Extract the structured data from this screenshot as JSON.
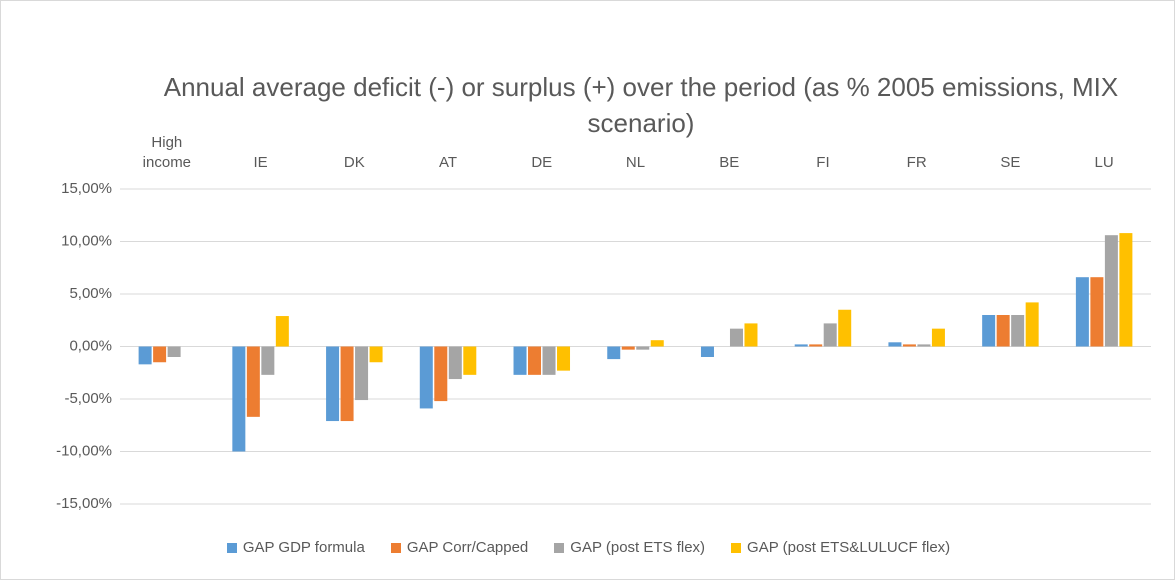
{
  "chart_data": {
    "type": "bar",
    "title": "Annual average deficit (-) or surplus (+) over the period (as % 2005 emissions, MIX scenario)",
    "categories": [
      "High income",
      "IE",
      "DK",
      "AT",
      "DE",
      "NL",
      "BE",
      "FI",
      "FR",
      "SE",
      "LU"
    ],
    "series": [
      {
        "name": "GAP GDP formula",
        "color": "#5b9bd5",
        "values": [
          -1.7,
          -10.0,
          -7.1,
          -5.9,
          -2.7,
          -1.2,
          -1.0,
          0.2,
          0.4,
          3.0,
          6.6
        ]
      },
      {
        "name": "GAP Corr/Capped",
        "color": "#ed7d31",
        "values": [
          -1.5,
          -6.7,
          -7.1,
          -5.2,
          -2.7,
          -0.3,
          0,
          0.2,
          0.2,
          3.0,
          6.6
        ]
      },
      {
        "name": "GAP (post ETS flex)",
        "color": "#a5a5a5",
        "values": [
          -1.0,
          -2.7,
          -5.1,
          -3.1,
          -2.7,
          -0.3,
          1.7,
          2.2,
          0.2,
          3.0,
          10.6
        ]
      },
      {
        "name": "GAP (post ETS&LULUCF flex)",
        "color": "#ffc000",
        "values": [
          null,
          2.9,
          -1.5,
          -2.7,
          -2.3,
          0.6,
          2.2,
          3.5,
          1.7,
          4.2,
          10.8
        ]
      }
    ],
    "ylim": [
      -15,
      15
    ],
    "yticks": [
      {
        "value": 15,
        "label": "15,00%"
      },
      {
        "value": 10,
        "label": "10,00%"
      },
      {
        "value": 5,
        "label": "5,00%"
      },
      {
        "value": 0,
        "label": "0,00%"
      },
      {
        "value": -5,
        "label": "-5,00%"
      },
      {
        "value": -10,
        "label": "-10,00%"
      },
      {
        "value": -15,
        "label": "-15,00%"
      }
    ],
    "grid": true
  }
}
